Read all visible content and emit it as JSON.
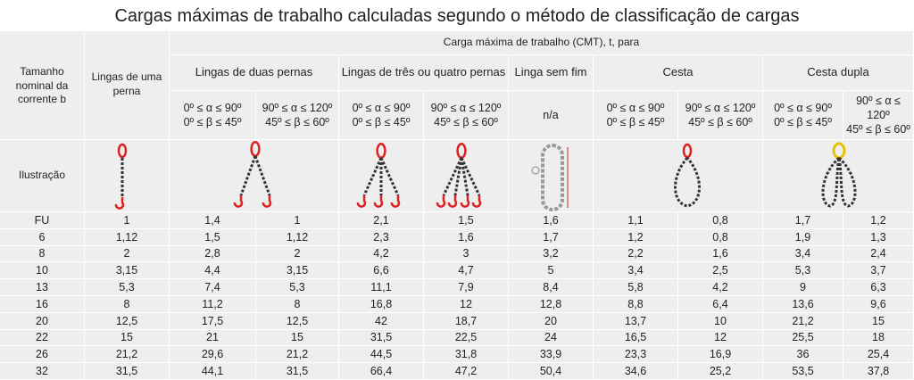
{
  "title": "Cargas máximas de trabalho calculadas segundo o método de classificação de cargas",
  "header": {
    "size_label": "Tamanho nominal da corrente b",
    "single_leg": "Lingas de uma perna",
    "span_title": "Carga máxima de trabalho (CMT), t, para",
    "groups": [
      "Lingas de duas pernas",
      "Lingas de três ou quatro pernas",
      "Linga sem fim",
      "Cesta",
      "Cesta dupla"
    ],
    "angles": [
      [
        "0º ≤ α ≤ 90º",
        "0º ≤ β ≤ 45º"
      ],
      [
        "90º ≤ α ≤ 120º",
        "45º ≤ β ≤ 60º"
      ],
      [
        "0º ≤ α ≤ 90º",
        "0º ≤ β ≤ 45º"
      ],
      [
        "90º ≤ α ≤ 120º",
        "45º ≤ β ≤ 60º"
      ],
      [
        "n/a"
      ],
      [
        "0º ≤ α ≤ 90º",
        "0º ≤ β ≤ 45º"
      ],
      [
        "90º ≤ α ≤ 120º",
        "45º ≤ β ≤ 60º"
      ],
      [
        "0º ≤ α ≤ 90º",
        "0º ≤ β ≤ 45º"
      ],
      [
        "90º ≤ α ≤ 120º",
        "45º ≤ β ≤ 60º"
      ]
    ],
    "illustration_label": "Ilustração"
  },
  "rows": [
    [
      "FU",
      "1",
      "1,4",
      "1",
      "2,1",
      "1,5",
      "1,6",
      "1,1",
      "0,8",
      "1,7",
      "1,2"
    ],
    [
      "6",
      "1,12",
      "1,5",
      "1,12",
      "2,3",
      "1,6",
      "1,7",
      "1,2",
      "0,8",
      "1,9",
      "1,3"
    ],
    [
      "8",
      "2",
      "2,8",
      "2",
      "4,2",
      "3",
      "3,2",
      "2,2",
      "1,6",
      "3,4",
      "2,4"
    ],
    [
      "10",
      "3,15",
      "4,4",
      "3,15",
      "6,6",
      "4,7",
      "5",
      "3,4",
      "2,5",
      "5,3",
      "3,7"
    ],
    [
      "13",
      "5,3",
      "7,4",
      "5,3",
      "11,1",
      "7,9",
      "8,4",
      "5,8",
      "4,2",
      "9",
      "6,3"
    ],
    [
      "16",
      "8",
      "11,2",
      "8",
      "16,8",
      "12",
      "12,8",
      "8,8",
      "6,4",
      "13,6",
      "9,6"
    ],
    [
      "20",
      "12,5",
      "17,5",
      "12,5",
      "42",
      "18,7",
      "20",
      "13,7",
      "10",
      "21,2",
      "15"
    ],
    [
      "22",
      "15",
      "21",
      "15",
      "31,5",
      "22,5",
      "24",
      "16,5",
      "12",
      "25,5",
      "18"
    ],
    [
      "26",
      "21,2",
      "29,6",
      "21,2",
      "44,5",
      "31,8",
      "33,9",
      "23,3",
      "16,9",
      "36",
      "25,4"
    ],
    [
      "32",
      "31,5",
      "44,1",
      "31,5",
      "66,4",
      "47,2",
      "50,4",
      "34,6",
      "25,2",
      "53,5",
      "37,8"
    ]
  ]
}
